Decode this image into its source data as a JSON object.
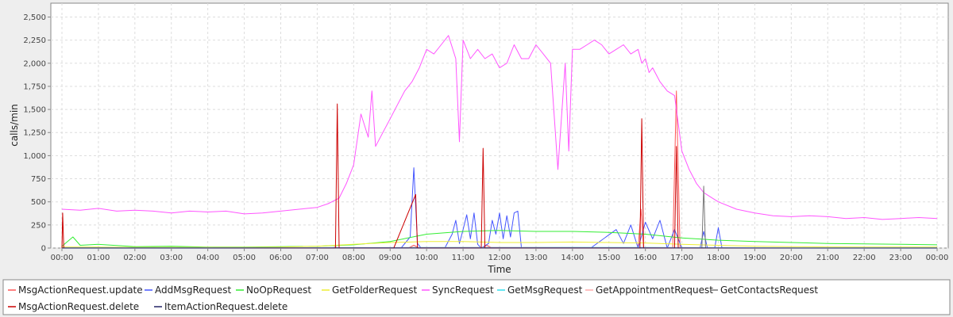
{
  "chart_data": {
    "type": "line",
    "title": "",
    "xlabel": "Time",
    "ylabel": "calls/min",
    "ylim": [
      0,
      2650
    ],
    "yticks": [
      0,
      250,
      500,
      750,
      1000,
      1250,
      1500,
      1750,
      2000,
      2250,
      2500
    ],
    "ytick_labels": [
      "0",
      "250",
      "500",
      "750",
      "1,000",
      "1,250",
      "1,500",
      "1,750",
      "2,000",
      "2,250",
      "2,500"
    ],
    "xlim": [
      0,
      24
    ],
    "xticks": [
      0,
      1,
      2,
      3,
      4,
      5,
      6,
      7,
      8,
      9,
      10,
      11,
      12,
      13,
      14,
      15,
      16,
      17,
      18,
      19,
      20,
      21,
      22,
      23,
      24
    ],
    "xtick_labels": [
      "00:00",
      "01:00",
      "02:00",
      "03:00",
      "04:00",
      "05:00",
      "06:00",
      "07:00",
      "08:00",
      "09:00",
      "10:00",
      "11:00",
      "12:00",
      "13:00",
      "14:00",
      "15:00",
      "16:00",
      "17:00",
      "18:00",
      "19:00",
      "20:00",
      "21:00",
      "22:00",
      "23:00",
      "00:00"
    ],
    "grid": true,
    "legend_position": "bottom",
    "series": [
      {
        "name": "MsgActionRequest.update",
        "color": "#ff5555",
        "x": [
          0,
          0.1,
          7.4,
          7.5,
          7.6,
          9.5,
          9.65,
          9.8,
          11.5,
          11.65,
          11.8,
          15.8,
          15.88,
          15.95,
          16.75,
          16.85,
          16.95,
          17.5,
          24
        ],
        "y": [
          0,
          0,
          0,
          10,
          0,
          0,
          30,
          0,
          0,
          30,
          0,
          0,
          420,
          0,
          0,
          1700,
          0,
          0,
          0
        ]
      },
      {
        "name": "AddMsgRequest",
        "color": "#4455ff",
        "x": [
          0,
          9.3,
          9.55,
          9.65,
          9.75,
          9.85,
          10.5,
          10.7,
          10.8,
          10.9,
          11.0,
          11.1,
          11.2,
          11.3,
          11.4,
          11.5,
          11.7,
          11.8,
          11.9,
          12.0,
          12.1,
          12.2,
          12.3,
          12.4,
          12.5,
          12.6,
          14.5,
          15.2,
          15.4,
          15.6,
          15.8,
          16.0,
          16.2,
          16.4,
          16.6,
          16.8,
          17.0,
          17.5,
          17.6,
          17.7,
          17.9,
          18.0,
          18.1,
          24
        ],
        "y": [
          0,
          0,
          120,
          870,
          50,
          0,
          0,
          150,
          300,
          50,
          200,
          360,
          100,
          380,
          40,
          0,
          50,
          300,
          150,
          380,
          100,
          350,
          120,
          380,
          400,
          0,
          0,
          200,
          50,
          250,
          0,
          280,
          100,
          300,
          0,
          200,
          0,
          0,
          180,
          0,
          0,
          220,
          0,
          0
        ]
      },
      {
        "name": "NoOpRequest",
        "color": "#33ee33",
        "x": [
          0,
          0.3,
          0.5,
          1,
          2,
          3,
          4,
          5,
          6,
          7,
          8,
          9,
          10,
          11,
          12,
          13,
          14,
          15,
          16,
          17,
          18,
          19,
          20,
          21,
          22,
          23,
          24
        ],
        "y": [
          20,
          120,
          30,
          40,
          15,
          20,
          10,
          10,
          15,
          20,
          35,
          70,
          150,
          180,
          190,
          180,
          180,
          170,
          150,
          110,
          85,
          70,
          60,
          50,
          45,
          40,
          35
        ]
      },
      {
        "name": "GetFolderRequest",
        "color": "#eeee33",
        "x": [
          0,
          1,
          2,
          3,
          4,
          5,
          6,
          7,
          8,
          9,
          10,
          11,
          12,
          13,
          14,
          15,
          16,
          17,
          18,
          19,
          20,
          21,
          22,
          23,
          24
        ],
        "y": [
          10,
          10,
          8,
          8,
          8,
          8,
          10,
          20,
          40,
          60,
          70,
          70,
          60,
          60,
          65,
          60,
          55,
          40,
          30,
          20,
          15,
          12,
          10,
          10,
          10
        ]
      },
      {
        "name": "SyncRequest",
        "color": "#ff55ff",
        "x": [
          0,
          0.5,
          1,
          1.5,
          2,
          2.5,
          3,
          3.5,
          4,
          4.5,
          5,
          5.5,
          6,
          6.5,
          7,
          7.3,
          7.6,
          7.8,
          8.0,
          8.2,
          8.4,
          8.5,
          8.6,
          8.8,
          9.0,
          9.2,
          9.4,
          9.6,
          9.8,
          10.0,
          10.2,
          10.4,
          10.6,
          10.8,
          10.9,
          11.0,
          11.2,
          11.4,
          11.6,
          11.8,
          12.0,
          12.2,
          12.4,
          12.6,
          12.8,
          13.0,
          13.2,
          13.4,
          13.6,
          13.8,
          13.9,
          14.0,
          14.2,
          14.4,
          14.6,
          14.8,
          15.0,
          15.2,
          15.4,
          15.6,
          15.8,
          15.9,
          16.0,
          16.1,
          16.2,
          16.4,
          16.6,
          16.8,
          17.0,
          17.2,
          17.4,
          17.6,
          17.8,
          18.0,
          18.5,
          19.0,
          19.5,
          20.0,
          20.5,
          21.0,
          21.5,
          22.0,
          22.5,
          23.0,
          23.5,
          24.0
        ],
        "y": [
          420,
          410,
          430,
          400,
          410,
          400,
          380,
          400,
          390,
          400,
          370,
          380,
          400,
          420,
          440,
          480,
          540,
          700,
          900,
          1450,
          1200,
          1700,
          1100,
          1250,
          1400,
          1550,
          1700,
          1800,
          1950,
          2150,
          2100,
          2200,
          2300,
          2050,
          1150,
          2250,
          2050,
          2150,
          2050,
          2100,
          1950,
          2000,
          2200,
          2050,
          2050,
          2200,
          2100,
          2000,
          850,
          2000,
          1050,
          2150,
          2150,
          2200,
          2250,
          2200,
          2100,
          2150,
          2200,
          2100,
          2150,
          2000,
          2050,
          1900,
          1950,
          1800,
          1700,
          1650,
          1050,
          850,
          700,
          600,
          550,
          500,
          420,
          380,
          350,
          340,
          350,
          340,
          320,
          330,
          310,
          320,
          330,
          320
        ]
      },
      {
        "name": "GetMsgRequest",
        "color": "#33ddee",
        "x": [
          0,
          6,
          8,
          10,
          12,
          14,
          16,
          18,
          20,
          24
        ],
        "y": [
          2,
          2,
          4,
          6,
          8,
          8,
          6,
          4,
          3,
          2
        ]
      },
      {
        "name": "GetAppointmentRequest",
        "color": "#ffaaaa",
        "x": [
          0,
          8,
          10,
          12,
          14,
          16,
          18,
          24
        ],
        "y": [
          1,
          3,
          5,
          6,
          5,
          4,
          2,
          1
        ]
      },
      {
        "name": "GetContactsRequest",
        "color": "#777777",
        "x": [
          0,
          8,
          12,
          16,
          17.55,
          17.6,
          17.65,
          24
        ],
        "y": [
          1,
          2,
          3,
          2,
          0,
          670,
          0,
          0
        ]
      },
      {
        "name": "MsgActionRequest.delete",
        "color": "#cc0000",
        "x": [
          0,
          0.02,
          0.05,
          0.15,
          7.5,
          7.55,
          7.6,
          9.1,
          9.7,
          9.75,
          9.85,
          11.5,
          11.55,
          11.6,
          15.85,
          15.9,
          15.95,
          16.8,
          16.85,
          16.9,
          24
        ],
        "y": [
          0,
          380,
          0,
          0,
          0,
          1560,
          0,
          0,
          580,
          0,
          0,
          0,
          1080,
          0,
          0,
          1400,
          0,
          0,
          1100,
          0,
          0
        ]
      },
      {
        "name": "ItemActionRequest.delete",
        "color": "#222266",
        "x": [
          0,
          8,
          12,
          16,
          24
        ],
        "y": [
          0,
          1,
          1,
          1,
          0
        ]
      }
    ]
  }
}
